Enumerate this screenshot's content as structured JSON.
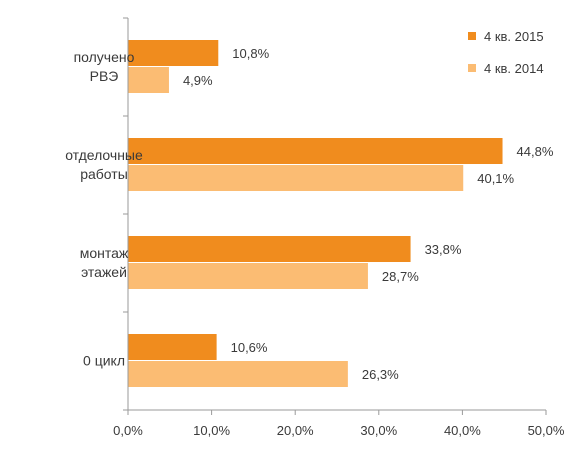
{
  "chart_data": {
    "type": "bar",
    "orientation": "horizontal",
    "categories": [
      [
        "получено",
        "РВЭ"
      ],
      [
        "отделочные",
        "работы"
      ],
      [
        "монтаж",
        "этажей"
      ],
      [
        "0 цикл"
      ]
    ],
    "series": [
      {
        "name": "4 кв. 2015",
        "color": "#f08c1e",
        "values": [
          10.8,
          44.8,
          33.8,
          10.6
        ],
        "labels": [
          "10,8%",
          "44,8%",
          "33,8%",
          "10,6%"
        ]
      },
      {
        "name": "4 кв. 2014",
        "color": "#fbbc73",
        "values": [
          4.9,
          40.1,
          28.7,
          26.3
        ],
        "labels": [
          "4,9%",
          "40,1%",
          "28,7%",
          "26,3%"
        ]
      }
    ],
    "x_ticks": [
      "0,0%",
      "10,0%",
      "20,0%",
      "30,0%",
      "40,0%",
      "50,0%"
    ],
    "xlim": [
      0,
      50
    ],
    "legend_position": "top-right",
    "grid": false,
    "title": "",
    "xlabel": "",
    "ylabel": ""
  }
}
